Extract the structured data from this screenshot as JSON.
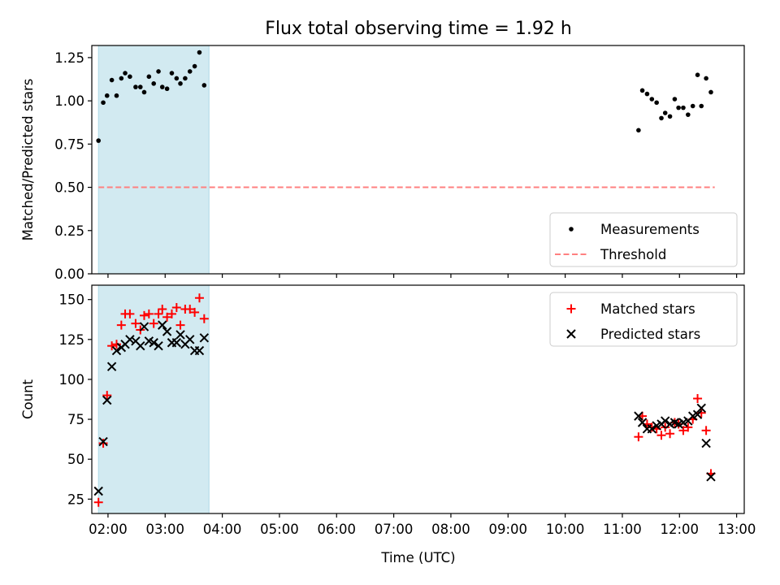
{
  "title": "Flux total observing time = 1.92 h",
  "xlabel": "Time (UTC)",
  "colors": {
    "measurement": "#000000",
    "threshold": "#ff8080",
    "matched": "#ff0000",
    "predicted": "#000000",
    "span": "#add8e6"
  },
  "chart_data": [
    {
      "type": "scatter",
      "ylabel": "Matched/Predicted stars",
      "xlim": [
        "01:43",
        "13:08"
      ],
      "ylim": [
        0,
        1.32
      ],
      "yticks": [
        "0.00",
        "0.25",
        "0.50",
        "0.75",
        "1.00",
        "1.25"
      ],
      "shaded_span": [
        "01:50",
        "03:46"
      ],
      "legend_position": "lower right",
      "series": [
        {
          "name": "Measurements",
          "marker": "dot",
          "points": [
            [
              "01:50",
              0.77
            ],
            [
              "01:55",
              0.99
            ],
            [
              "01:59",
              1.03
            ],
            [
              "02:04",
              1.12
            ],
            [
              "02:09",
              1.03
            ],
            [
              "02:14",
              1.13
            ],
            [
              "02:18",
              1.16
            ],
            [
              "02:23",
              1.14
            ],
            [
              "02:29",
              1.08
            ],
            [
              "02:34",
              1.08
            ],
            [
              "02:38",
              1.05
            ],
            [
              "02:43",
              1.14
            ],
            [
              "02:48",
              1.1
            ],
            [
              "02:53",
              1.17
            ],
            [
              "02:57",
              1.08
            ],
            [
              "03:02",
              1.07
            ],
            [
              "03:07",
              1.16
            ],
            [
              "03:12",
              1.13
            ],
            [
              "03:16",
              1.1
            ],
            [
              "03:21",
              1.13
            ],
            [
              "03:26",
              1.17
            ],
            [
              "03:31",
              1.2
            ],
            [
              "03:36",
              1.28
            ],
            [
              "03:41",
              1.09
            ],
            [
              "11:17",
              0.83
            ],
            [
              "11:21",
              1.06
            ],
            [
              "11:26",
              1.04
            ],
            [
              "11:31",
              1.01
            ],
            [
              "11:36",
              0.99
            ],
            [
              "11:41",
              0.9
            ],
            [
              "11:45",
              0.93
            ],
            [
              "11:50",
              0.91
            ],
            [
              "11:55",
              1.01
            ],
            [
              "11:59",
              0.96
            ],
            [
              "12:04",
              0.96
            ],
            [
              "12:09",
              0.92
            ],
            [
              "12:14",
              0.97
            ],
            [
              "12:19",
              1.15
            ],
            [
              "12:23",
              0.97
            ],
            [
              "12:28",
              1.13
            ],
            [
              "12:33",
              1.05
            ]
          ]
        },
        {
          "name": "Threshold",
          "marker": "dashed-line",
          "points": [
            [
              "01:50",
              0.5
            ],
            [
              "12:37",
              0.5
            ]
          ]
        }
      ]
    },
    {
      "type": "scatter",
      "ylabel": "Count",
      "xlim": [
        "01:43",
        "13:08"
      ],
      "ylim": [
        16,
        159
      ],
      "yticks": [
        "25",
        "50",
        "75",
        "100",
        "125",
        "150"
      ],
      "xticks": [
        "02:00",
        "03:00",
        "04:00",
        "05:00",
        "06:00",
        "07:00",
        "08:00",
        "09:00",
        "10:00",
        "11:00",
        "12:00",
        "13:00"
      ],
      "shaded_span": [
        "01:50",
        "03:46"
      ],
      "legend_position": "upper right",
      "series": [
        {
          "name": "Matched stars",
          "marker": "plus",
          "points": [
            [
              "01:50",
              23
            ],
            [
              "01:55",
              60
            ],
            [
              "01:59",
              90
            ],
            [
              "02:04",
              121
            ],
            [
              "02:09",
              122
            ],
            [
              "02:14",
              134
            ],
            [
              "02:18",
              141
            ],
            [
              "02:23",
              141
            ],
            [
              "02:29",
              135
            ],
            [
              "02:34",
              131
            ],
            [
              "02:38",
              140
            ],
            [
              "02:43",
              141
            ],
            [
              "02:48",
              135
            ],
            [
              "02:53",
              141
            ],
            [
              "02:57",
              144
            ],
            [
              "03:02",
              139
            ],
            [
              "03:07",
              141
            ],
            [
              "03:12",
              145
            ],
            [
              "03:16",
              134
            ],
            [
              "03:21",
              144
            ],
            [
              "03:26",
              144
            ],
            [
              "03:31",
              142
            ],
            [
              "03:36",
              151
            ],
            [
              "03:41",
              138
            ],
            [
              "11:17",
              64
            ],
            [
              "11:21",
              77
            ],
            [
              "11:26",
              72
            ],
            [
              "11:31",
              70
            ],
            [
              "11:36",
              69
            ],
            [
              "11:41",
              65
            ],
            [
              "11:45",
              70
            ],
            [
              "11:50",
              66
            ],
            [
              "11:55",
              73
            ],
            [
              "11:59",
              72
            ],
            [
              "12:04",
              68
            ],
            [
              "12:09",
              70
            ],
            [
              "12:14",
              75
            ],
            [
              "12:19",
              88
            ],
            [
              "12:23",
              79
            ],
            [
              "12:28",
              68
            ],
            [
              "12:33",
              41
            ]
          ]
        },
        {
          "name": "Predicted stars",
          "marker": "x",
          "points": [
            [
              "01:50",
              30
            ],
            [
              "01:55",
              61
            ],
            [
              "01:59",
              87
            ],
            [
              "02:04",
              108
            ],
            [
              "02:09",
              118
            ],
            [
              "02:14",
              120
            ],
            [
              "02:18",
              122
            ],
            [
              "02:23",
              125
            ],
            [
              "02:29",
              124
            ],
            [
              "02:34",
              121
            ],
            [
              "02:38",
              133
            ],
            [
              "02:43",
              124
            ],
            [
              "02:48",
              123
            ],
            [
              "02:53",
              121
            ],
            [
              "02:57",
              134
            ],
            [
              "03:02",
              130
            ],
            [
              "03:07",
              123
            ],
            [
              "03:12",
              123
            ],
            [
              "03:16",
              128
            ],
            [
              "03:21",
              122
            ],
            [
              "03:26",
              125
            ],
            [
              "03:31",
              118
            ],
            [
              "03:36",
              118
            ],
            [
              "03:41",
              126
            ],
            [
              "11:17",
              77
            ],
            [
              "11:21",
              73
            ],
            [
              "11:26",
              69
            ],
            [
              "11:31",
              69
            ],
            [
              "11:36",
              71
            ],
            [
              "11:41",
              72
            ],
            [
              "11:45",
              74
            ],
            [
              "11:50",
              72
            ],
            [
              "11:55",
              73
            ],
            [
              "11:59",
              72
            ],
            [
              "12:04",
              73
            ],
            [
              "12:09",
              74
            ],
            [
              "12:14",
              77
            ],
            [
              "12:19",
              78
            ],
            [
              "12:23",
              82
            ],
            [
              "12:28",
              60
            ],
            [
              "12:33",
              39
            ]
          ]
        }
      ]
    }
  ]
}
